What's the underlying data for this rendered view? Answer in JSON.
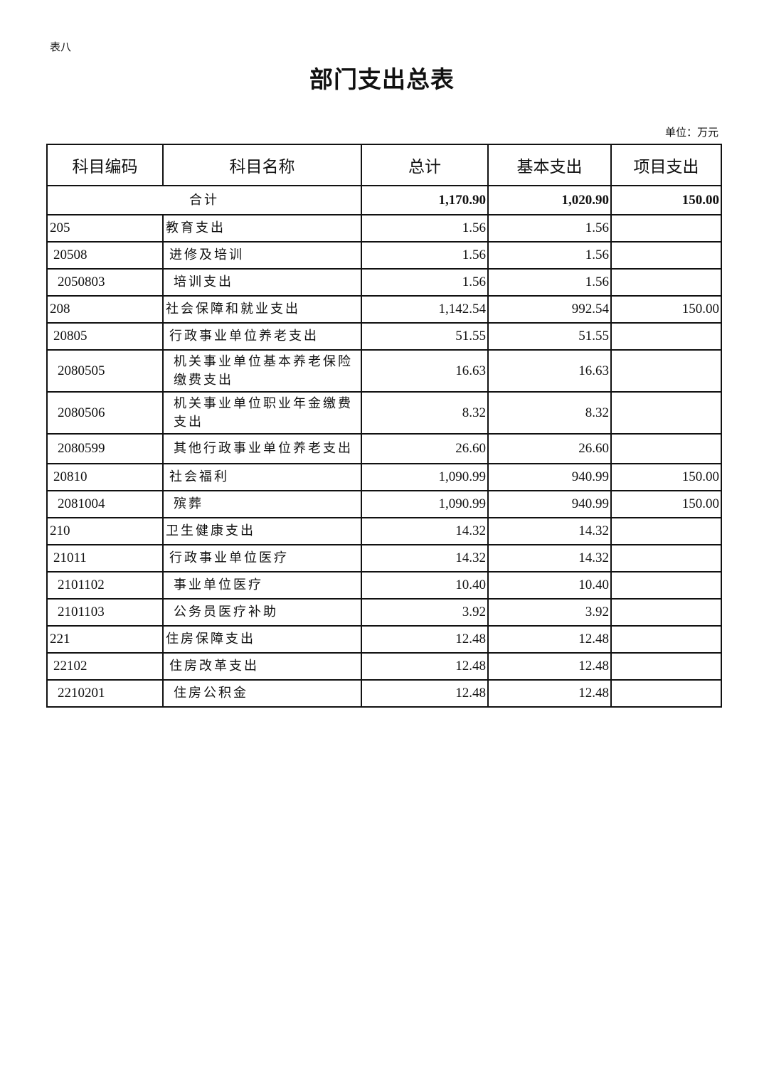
{
  "table_label": "表八",
  "title": "部门支出总表",
  "unit": "单位：万元",
  "headers": [
    "科目编码",
    "科目名称",
    "总计",
    "基本支出",
    "项目支出"
  ],
  "total": {
    "label": "合计",
    "total": "1,170.90",
    "basic": "1,020.90",
    "project": "150.00"
  },
  "rows": [
    {
      "code": "205",
      "name": "教育支出",
      "total": "1.56",
      "basic": "1.56",
      "project": ""
    },
    {
      "code": "20508",
      "name": "进修及培训",
      "total": "1.56",
      "basic": "1.56",
      "project": ""
    },
    {
      "code": "2050803",
      "name": "培训支出",
      "total": "1.56",
      "basic": "1.56",
      "project": ""
    },
    {
      "code": "208",
      "name": "社会保障和就业支出",
      "total": "1,142.54",
      "basic": "992.54",
      "project": "150.00"
    },
    {
      "code": "20805",
      "name": "行政事业单位养老支出",
      "total": "51.55",
      "basic": "51.55",
      "project": ""
    },
    {
      "code": "2080505",
      "name": "机关事业单位基本养老保险缴费支出",
      "total": "16.63",
      "basic": "16.63",
      "project": ""
    },
    {
      "code": "2080506",
      "name": "机关事业单位职业年金缴费支出",
      "total": "8.32",
      "basic": "8.32",
      "project": ""
    },
    {
      "code": "2080599",
      "name": "其他行政事业单位养老支出",
      "total": "26.60",
      "basic": "26.60",
      "project": ""
    },
    {
      "code": "20810",
      "name": "社会福利",
      "total": "1,090.99",
      "basic": "940.99",
      "project": "150.00"
    },
    {
      "code": "2081004",
      "name": "殡葬",
      "total": "1,090.99",
      "basic": "940.99",
      "project": "150.00"
    },
    {
      "code": "210",
      "name": "卫生健康支出",
      "total": "14.32",
      "basic": "14.32",
      "project": ""
    },
    {
      "code": "21011",
      "name": "行政事业单位医疗",
      "total": "14.32",
      "basic": "14.32",
      "project": ""
    },
    {
      "code": "2101102",
      "name": "事业单位医疗",
      "total": "10.40",
      "basic": "10.40",
      "project": ""
    },
    {
      "code": "2101103",
      "name": "公务员医疗补助",
      "total": "3.92",
      "basic": "3.92",
      "project": ""
    },
    {
      "code": "221",
      "name": "住房保障支出",
      "total": "12.48",
      "basic": "12.48",
      "project": ""
    },
    {
      "code": "22102",
      "name": "住房改革支出",
      "total": "12.48",
      "basic": "12.48",
      "project": ""
    },
    {
      "code": "2210201",
      "name": "住房公积金",
      "total": "12.48",
      "basic": "12.48",
      "project": ""
    }
  ]
}
